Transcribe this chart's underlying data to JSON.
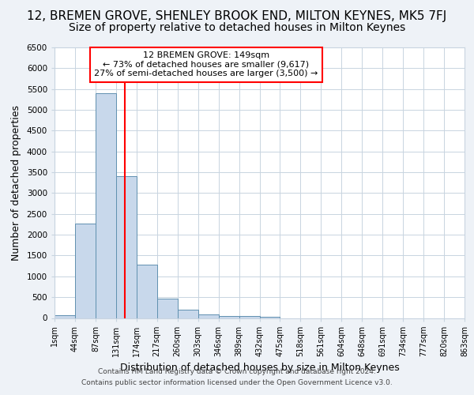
{
  "title1": "12, BREMEN GROVE, SHENLEY BROOK END, MILTON KEYNES, MK5 7FJ",
  "title2": "Size of property relative to detached houses in Milton Keynes",
  "xlabel": "Distribution of detached houses by size in Milton Keynes",
  "ylabel": "Number of detached properties",
  "annotation_line1": "12 BREMEN GROVE: 149sqm",
  "annotation_line2": "← 73% of detached houses are smaller (9,617)",
  "annotation_line3": "27% of semi-detached houses are larger (3,500) →",
  "bar_values": [
    75,
    2270,
    5400,
    3400,
    1280,
    470,
    190,
    90,
    50,
    50,
    30,
    0,
    0,
    0,
    0,
    0,
    0,
    0,
    0,
    0
  ],
  "x_tick_labels": [
    "1sqm",
    "44sqm",
    "87sqm",
    "131sqm",
    "174sqm",
    "217sqm",
    "260sqm",
    "303sqm",
    "346sqm",
    "389sqm",
    "432sqm",
    "475sqm",
    "518sqm",
    "561sqm",
    "604sqm",
    "648sqm",
    "691sqm",
    "734sqm",
    "777sqm",
    "820sqm",
    "863sqm"
  ],
  "bar_color": "#c8d8eb",
  "bar_edge_color": "#6090b0",
  "ylim": [
    0,
    6500
  ],
  "yticks": [
    0,
    500,
    1000,
    1500,
    2000,
    2500,
    3000,
    3500,
    4000,
    4500,
    5000,
    5500,
    6000,
    6500
  ],
  "background_color": "#eef2f7",
  "plot_bg_color": "#ffffff",
  "grid_color": "#c8d4e0",
  "title1_fontsize": 11,
  "title2_fontsize": 10,
  "footnote1": "Contains HM Land Registry data © Crown copyright and database right 2024.",
  "footnote2": "Contains public sector information licensed under the Open Government Licence v3.0."
}
